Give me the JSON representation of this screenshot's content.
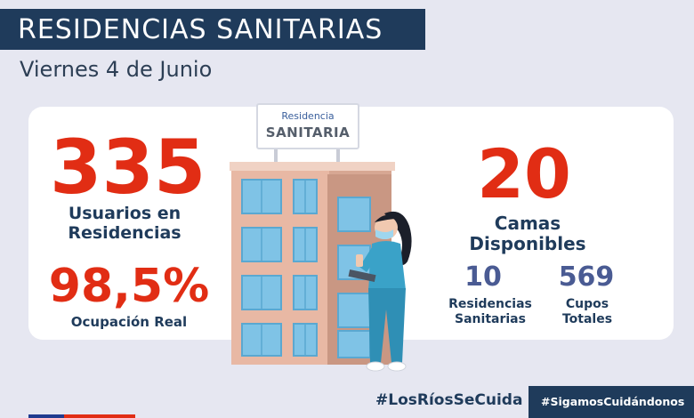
{
  "header": {
    "title": "RESIDENCIAS SANITARIAS",
    "date": "Viernes 4 de Junio"
  },
  "stats": {
    "usuarios_value": "335",
    "usuarios_label": "Usuarios en Residencias",
    "ocupacion_value": "98,5%",
    "ocupacion_label": "Ocupación Real",
    "camas_value": "20",
    "camas_label": "Camas Disponibles",
    "residencias_value": "10",
    "residencias_label": "Residencias Sanitarias",
    "cupos_value": "569",
    "cupos_label": "Cupos Totales"
  },
  "sign": {
    "line1": "Residencia",
    "line2": "SANITARIA"
  },
  "footer": {
    "hashtag1": "#LosRíosSeCuida",
    "hashtag2": "#SigamosCuidándonos"
  },
  "colors": {
    "navy": "#1f3b5b",
    "red": "#e12d14",
    "accent_blue": "#4a5b93",
    "background": "#e6e7f1"
  },
  "icons": [
    "building-illustration",
    "nurse-illustration",
    "flag-strip"
  ]
}
